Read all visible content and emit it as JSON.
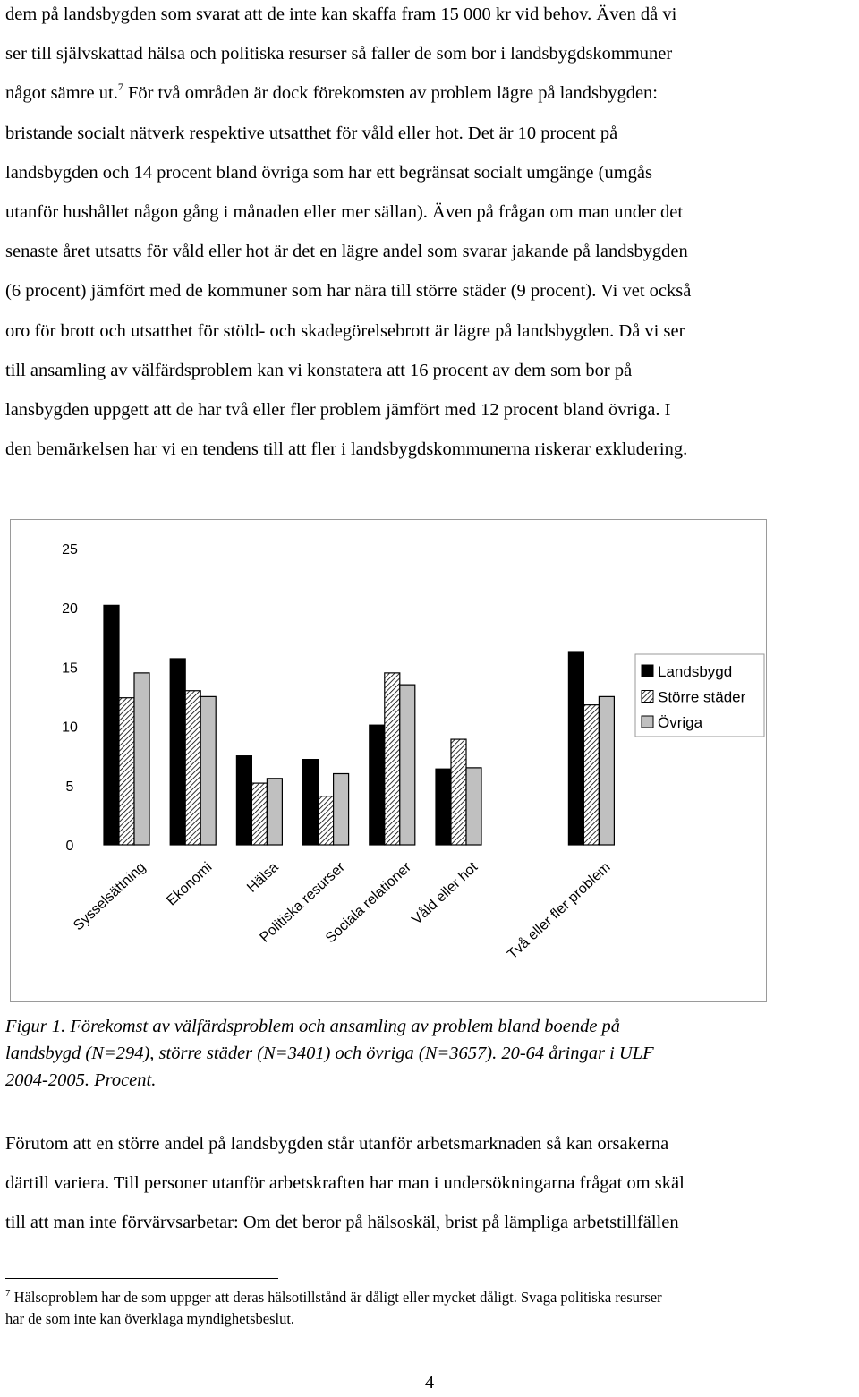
{
  "para1": [
    "dem på landsbygden som svarat att de inte kan skaffa fram 15 000 kr vid behov. Även då vi",
    "ser till självskattad hälsa och politiska resurser så faller de som bor i landsbygdskommuner",
    "något sämre ut.",
    "7",
    " För två områden är dock förekomsten av problem lägre på landsbygden:",
    "bristande socialt nätverk respektive utsatthet för våld eller hot. Det är 10 procent på",
    "landsbygden och 14 procent bland övriga som har ett begränsat socialt umgänge (umgås",
    "utanför hushållet någon gång i månaden eller mer sällan). Även på frågan om man under det",
    "senaste året utsatts för våld eller hot är det en lägre andel som svarar jakande på landsbygden",
    "(6 procent) jämfört med de kommuner som har nära till större städer (9 procent). Vi vet också",
    "oro för brott och utsatthet för stöld- och skadegörelsebrott är lägre på landsbygden. Då vi ser",
    "till ansamling av välfärdsproblem kan vi konstatera att 16 procent av dem som bor på",
    "lansbygden uppgett att de har två eller fler problem jämfört med 12 procent bland övriga. I",
    "den bemärkelsen har vi en tendens till att fler i landsbygdskommunerna riskerar exkludering."
  ],
  "chart_data": {
    "type": "bar",
    "categories": [
      "Sysselsättning",
      "Ekonomi",
      "Hälsa",
      "Politiska resurser",
      "Sociala relationer",
      "Våld eller hot",
      "Två eller fler problem"
    ],
    "series": [
      {
        "name": "Landsbygd",
        "values": [
          20.2,
          15.7,
          7.5,
          7.2,
          10.1,
          6.4,
          16.3
        ],
        "color": "#000000",
        "fill": "solid"
      },
      {
        "name": "Större städer",
        "values": [
          12.4,
          13.0,
          5.2,
          4.1,
          14.5,
          8.9,
          11.8
        ],
        "color": "#ffffff",
        "fill": "hatch"
      },
      {
        "name": "Övriga",
        "values": [
          14.5,
          12.5,
          5.6,
          6.0,
          13.5,
          6.5,
          12.5
        ],
        "color": "#c0c0c0",
        "fill": "solid"
      }
    ],
    "category_slots": 8,
    "empty_slot_index": 6,
    "yticks": [
      0,
      5,
      10,
      15,
      20,
      25
    ],
    "ylim": [
      0,
      25
    ],
    "legend_position": "right",
    "grid": false
  },
  "caption": [
    "Figur 1. Förekomst av välfärdsproblem och ansamling av problem bland boende på",
    "landsbygd (N=294), större städer (N=3401) och övriga (N=3657). 20-64 åringar i ULF",
    "2004-2005. Procent."
  ],
  "para2": [
    "Förutom att en större andel på landsbygden står utanför arbetsmarknaden så kan orsakerna",
    "därtill variera. Till personer utanför arbetskraften har man i undersökningarna frågat om skäl",
    "till att man inte förvärvsarbetar: Om det beror på hälsoskäl, brist på lämpliga arbetstillfällen"
  ],
  "footnote": {
    "marker": "7",
    "line1": " Hälsoproblem har de som uppger att deras hälsotillstånd är dåligt eller mycket dåligt. Svaga politiska resurser",
    "line2": "har de som inte kan överklaga myndighetsbeslut."
  },
  "page_number": "4"
}
